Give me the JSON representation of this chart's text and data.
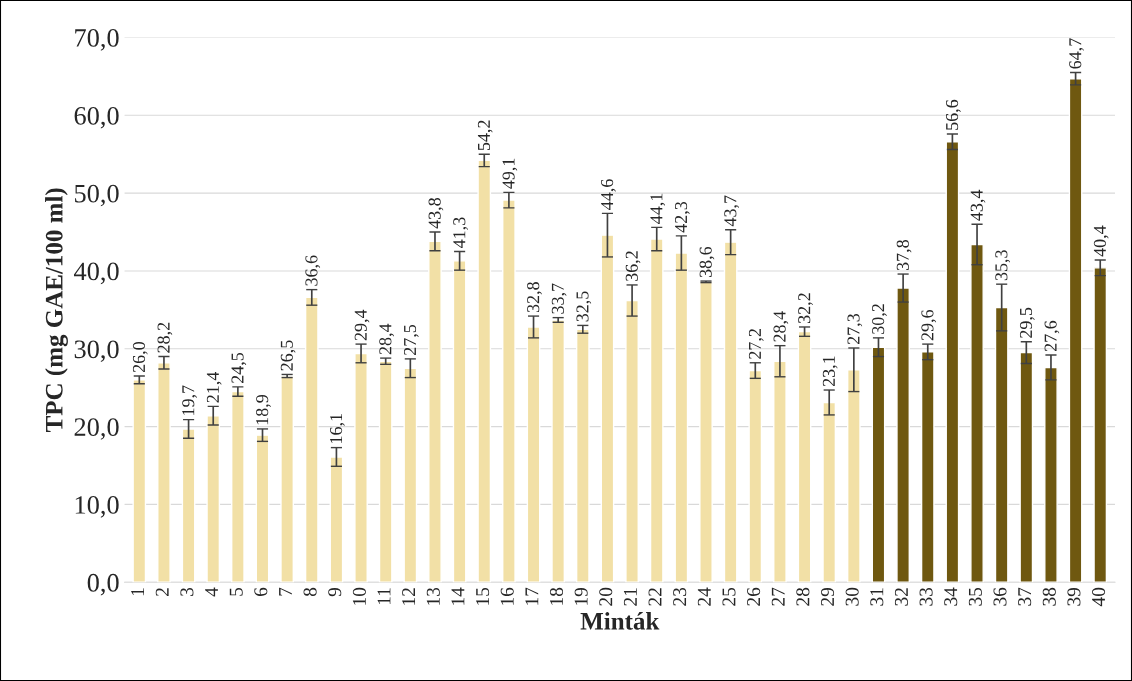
{
  "chart_data": {
    "type": "bar",
    "xlabel": "Minták",
    "ylabel": "TPC (mg GAE/100 ml)",
    "categories": [
      "1",
      "2",
      "3",
      "4",
      "5",
      "6",
      "7",
      "8",
      "9",
      "10",
      "11",
      "12",
      "13",
      "14",
      "15",
      "16",
      "17",
      "18",
      "19",
      "20",
      "21",
      "22",
      "23",
      "24",
      "25",
      "26",
      "27",
      "28",
      "29",
      "30",
      "31",
      "32",
      "33",
      "34",
      "35",
      "36",
      "37",
      "38",
      "39",
      "40"
    ],
    "values": [
      26.0,
      28.2,
      19.7,
      21.4,
      24.5,
      18.9,
      26.5,
      36.6,
      16.1,
      29.4,
      28.4,
      27.5,
      43.8,
      41.3,
      54.2,
      49.1,
      32.8,
      33.7,
      32.5,
      44.6,
      36.2,
      44.1,
      42.3,
      38.6,
      43.7,
      27.2,
      28.4,
      32.2,
      23.1,
      27.3,
      30.2,
      37.8,
      29.6,
      56.6,
      43.4,
      35.3,
      29.5,
      27.6,
      64.7,
      40.4
    ],
    "errors": [
      0.5,
      0.8,
      1.2,
      1.2,
      0.6,
      0.8,
      0.2,
      1.0,
      1.2,
      1.2,
      0.4,
      1.2,
      1.2,
      1.2,
      0.8,
      1.0,
      1.4,
      0.3,
      0.5,
      2.8,
      2.0,
      1.5,
      2.2,
      0.1,
      1.6,
      1.0,
      2.0,
      0.6,
      1.6,
      2.8,
      1.2,
      1.8,
      1.0,
      1.0,
      2.6,
      3.0,
      1.4,
      1.6,
      0.8,
      1.0
    ],
    "value_labels": [
      "26,0",
      "28,2",
      "19,7",
      "21,4",
      "24,5",
      "18,9",
      "26,5",
      "36,6",
      "16,1",
      "29,4",
      "28,4",
      "27,5",
      "43,8",
      "41,3",
      "54,2",
      "49,1",
      "32,8",
      "33,7",
      "32,5",
      "44,6",
      "36,2",
      "44,1",
      "42,3",
      "38,6",
      "43,7",
      "27,2",
      "28,4",
      "32,2",
      "23,1",
      "27,3",
      "30,2",
      "37,8",
      "29,6",
      "56,6",
      "43,4",
      "35,3",
      "29,5",
      "27,6",
      "64,7",
      "40,4"
    ],
    "colors": [
      "#ffe699",
      "#ffe699",
      "#ffe699",
      "#ffe699",
      "#ffe699",
      "#ffe699",
      "#ffe699",
      "#ffe699",
      "#ffe699",
      "#ffe699",
      "#ffe699",
      "#ffe699",
      "#ffe699",
      "#ffe699",
      "#ffe699",
      "#ffe699",
      "#ffe699",
      "#ffe699",
      "#ffe699",
      "#ffe699",
      "#ffe699",
      "#ffe699",
      "#ffe699",
      "#ffe699",
      "#ffe699",
      "#ffe699",
      "#ffe699",
      "#ffe699",
      "#ffe699",
      "#ffe699",
      "#7f6000",
      "#7f6000",
      "#7f6000",
      "#7f6000",
      "#7f6000",
      "#7f6000",
      "#7f6000",
      "#7f6000",
      "#7f6000",
      "#7f6000"
    ],
    "ylim": [
      0,
      70
    ],
    "yticks": [
      {
        "value": 0,
        "label": "0,0"
      },
      {
        "value": 10,
        "label": "10,0"
      },
      {
        "value": 20,
        "label": "20,0"
      },
      {
        "value": 30,
        "label": "30,0"
      },
      {
        "value": 40,
        "label": "40,0"
      },
      {
        "value": 50,
        "label": "50,0"
      },
      {
        "value": 60,
        "label": "60,0"
      },
      {
        "value": 70,
        "label": "70,0"
      }
    ],
    "grid": "y",
    "legend": false
  }
}
